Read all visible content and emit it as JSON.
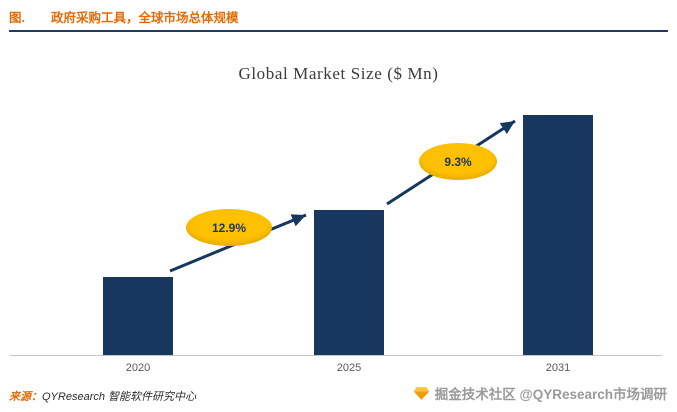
{
  "header": {
    "figure_label": "图.",
    "figure_title": "政府采购工具，全球市场总体规模"
  },
  "chart_data": {
    "type": "bar",
    "title": "Global Market Size ($ Mn)",
    "categories": [
      "2020",
      "2025",
      "2031"
    ],
    "values": [
      100,
      186,
      308
    ],
    "values_note": "relative bar heights; no y-axis scale or value labels shown in chart",
    "xlabel": "",
    "ylabel": "",
    "grid": false,
    "legend": false,
    "bar_color": "#17375E",
    "axis_line_color": "#C6C6C6",
    "annotation_fill": "#FFC000",
    "annotation_text_color": "#17375E",
    "growth_annotations": [
      {
        "label": "12.9%",
        "from": "2020",
        "to": "2025"
      },
      {
        "label": "9.3%",
        "from": "2025",
        "to": "2031"
      }
    ]
  },
  "footer": {
    "source_label": "来源：",
    "source_text": "QYResearch 智能软件研究中心",
    "watermark_text": "掘金技术社区 @QYResearch市场调研"
  },
  "colors": {
    "header_accent": "#E36C09",
    "divider_navy": "#1F3864",
    "watermark_gray": "#9A9A9A",
    "gem_gold": "#F5A623"
  }
}
